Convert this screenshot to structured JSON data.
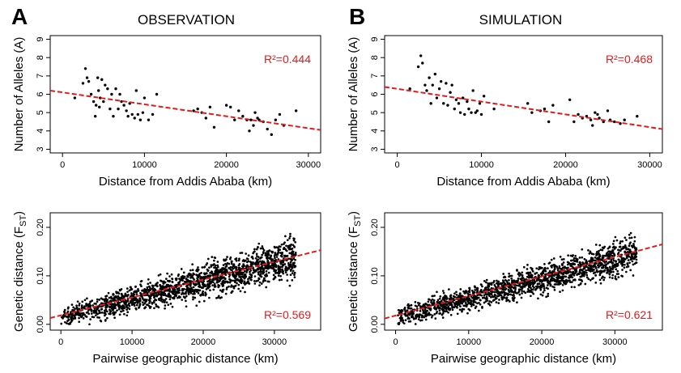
{
  "panel_letters": [
    "A",
    "B"
  ],
  "column_titles": [
    "OBSERVATION",
    "SIMULATION"
  ],
  "accent_color": "#e41a1c",
  "point_color": "#000000",
  "chart_data": [
    {
      "type": "scatter",
      "id": "obs-alleles",
      "title": "",
      "xlabel": "Distance from Addis Ababa (km)",
      "ylabel": "Number of Alleles (A)",
      "xlim": [
        -1500,
        31500
      ],
      "ylim": [
        2.8,
        9.2
      ],
      "xticks": [
        0,
        10000,
        20000,
        30000
      ],
      "yticks": [
        3,
        4,
        5,
        6,
        7,
        8,
        9
      ],
      "annotation": "R²=0.444",
      "trend": {
        "x": [
          -1500,
          31500
        ],
        "y": [
          6.2,
          4.05
        ]
      },
      "points": {
        "x": [
          1500,
          2500,
          2800,
          3000,
          3200,
          3500,
          3800,
          4000,
          4100,
          4300,
          4400,
          4500,
          4600,
          4800,
          5000,
          5200,
          5500,
          5800,
          6000,
          6200,
          6500,
          6800,
          7000,
          7200,
          7500,
          7800,
          8000,
          8200,
          8500,
          8800,
          9000,
          9200,
          9500,
          9800,
          10000,
          10500,
          11000,
          11500,
          16000,
          16500,
          17000,
          17500,
          18000,
          18500,
          20000,
          20500,
          21000,
          21500,
          22000,
          22500,
          22800,
          23000,
          23300,
          23500,
          23800,
          24000,
          24500,
          25000,
          25500,
          26000,
          26500,
          27000,
          28500
        ],
        "y": [
          5.8,
          6.6,
          7.4,
          6.9,
          6.7,
          6.0,
          5.6,
          4.8,
          5.4,
          6.9,
          6.2,
          5.3,
          5.8,
          6.8,
          5.6,
          6.5,
          6.3,
          5.2,
          6.0,
          4.8,
          6.3,
          5.2,
          6.0,
          5.6,
          5.4,
          5.1,
          4.8,
          5.5,
          4.9,
          4.7,
          6.2,
          4.9,
          4.6,
          5.0,
          5.8,
          4.6,
          4.9,
          6.0,
          5.1,
          5.2,
          5.0,
          4.7,
          5.3,
          4.2,
          5.4,
          5.3,
          4.6,
          5.1,
          4.8,
          4.6,
          4.0,
          4.6,
          4.3,
          5.0,
          4.7,
          4.6,
          4.5,
          4.1,
          3.8,
          4.6,
          4.9,
          4.3,
          5.1
        ]
      }
    },
    {
      "type": "scatter",
      "id": "sim-alleles",
      "title": "",
      "xlabel": "Distance from Addis Ababa (km)",
      "ylabel": "Number of Alleles (A)",
      "xlim": [
        -1500,
        31500
      ],
      "ylim": [
        2.8,
        9.2
      ],
      "xticks": [
        0,
        10000,
        20000,
        30000
      ],
      "yticks": [
        3,
        4,
        5,
        6,
        7,
        8,
        9
      ],
      "annotation": "R²=0.468",
      "trend": {
        "x": [
          -1500,
          31500
        ],
        "y": [
          6.4,
          4.1
        ]
      },
      "points": {
        "x": [
          1500,
          2500,
          2800,
          3000,
          3300,
          3500,
          3800,
          4000,
          4200,
          4500,
          4700,
          5000,
          5200,
          5500,
          5800,
          6000,
          6300,
          6500,
          6800,
          7000,
          7300,
          7500,
          7800,
          8000,
          8300,
          8500,
          8800,
          9000,
          9300,
          9500,
          9800,
          10000,
          10300,
          11500,
          15500,
          16000,
          17000,
          17500,
          18000,
          18500,
          20500,
          21000,
          21500,
          22000,
          22500,
          23000,
          23200,
          23500,
          23800,
          24000,
          24500,
          25000,
          25300,
          25800,
          26500,
          27000,
          28500
        ],
        "y": [
          6.3,
          7.5,
          8.1,
          7.7,
          6.5,
          6.2,
          6.9,
          5.5,
          6.5,
          7.1,
          5.8,
          6.3,
          6.7,
          5.5,
          6.6,
          5.4,
          6.1,
          6.5,
          5.2,
          5.7,
          5.5,
          5.0,
          5.8,
          4.9,
          5.6,
          5.2,
          5.0,
          6.2,
          5.0,
          5.1,
          5.5,
          4.9,
          5.9,
          5.2,
          5.5,
          5.0,
          5.1,
          5.2,
          4.5,
          5.4,
          5.7,
          4.5,
          4.9,
          4.7,
          4.8,
          4.6,
          4.3,
          5.0,
          4.9,
          4.7,
          4.5,
          5.1,
          4.6,
          4.5,
          4.4,
          4.6,
          4.8
        ]
      }
    },
    {
      "type": "scatter",
      "id": "obs-fst",
      "title": "",
      "xlabel": "Pairwise geographic distance (km)",
      "ylabel": "Genetic distance (F_ST)",
      "xlim": [
        -1500,
        36500
      ],
      "ylim": [
        -0.012,
        0.23
      ],
      "xticks": [
        0,
        10000,
        20000,
        30000
      ],
      "yticks": [
        0.0,
        0.1,
        0.2
      ],
      "annotation": "R²=0.569",
      "trend": {
        "x": [
          -1500,
          36500
        ],
        "y": [
          0.013,
          0.153
        ]
      },
      "cloud": {
        "n": 1800,
        "x_max": 33000,
        "intercept": 0.015,
        "slope": 3.7e-06,
        "noise": 0.02,
        "seed": 7
      }
    },
    {
      "type": "scatter",
      "id": "sim-fst",
      "title": "",
      "xlabel": "Pairwise geographic distance (km)",
      "ylabel": "Genetic distance (F_ST)",
      "xlim": [
        -1500,
        36500
      ],
      "ylim": [
        -0.012,
        0.23
      ],
      "xticks": [
        0,
        10000,
        20000,
        30000
      ],
      "yticks": [
        0.0,
        0.1,
        0.2
      ],
      "annotation": "R²=0.621",
      "trend": {
        "x": [
          -1500,
          36500
        ],
        "y": [
          0.012,
          0.165
        ]
      },
      "cloud": {
        "n": 1700,
        "x_max": 33000,
        "intercept": 0.014,
        "slope": 4e-06,
        "noise": 0.018,
        "seed": 19
      }
    }
  ]
}
